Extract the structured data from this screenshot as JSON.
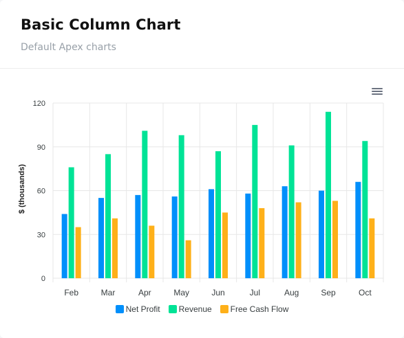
{
  "header": {
    "title": "Basic Column Chart",
    "subtitle": "Default Apex charts"
  },
  "toolbar": {
    "menu_icon": "hamburger-menu-icon"
  },
  "colors": {
    "net_profit": "#008ffb",
    "revenue": "#00e396",
    "free_cash_flow": "#feb019",
    "grid": "#e7e7e7"
  },
  "chart_data": {
    "type": "bar",
    "categories": [
      "Feb",
      "Mar",
      "Apr",
      "May",
      "Jun",
      "Jul",
      "Aug",
      "Sep",
      "Oct"
    ],
    "series": [
      {
        "name": "Net Profit",
        "values": [
          44,
          55,
          57,
          56,
          61,
          58,
          63,
          60,
          66
        ]
      },
      {
        "name": "Revenue",
        "values": [
          76,
          85,
          101,
          98,
          87,
          105,
          91,
          114,
          94
        ]
      },
      {
        "name": "Free Cash Flow",
        "values": [
          35,
          41,
          36,
          26,
          45,
          48,
          52,
          53,
          41
        ]
      }
    ],
    "title": "",
    "xlabel": "",
    "ylabel": "$ (thousands)",
    "ylim": [
      0,
      120
    ],
    "yticks": [
      0,
      30,
      60,
      90,
      120
    ],
    "grid": true,
    "legend_position": "bottom"
  }
}
